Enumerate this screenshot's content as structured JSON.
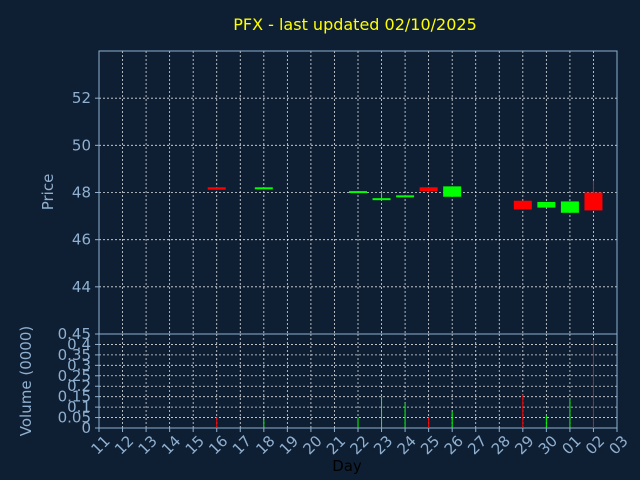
{
  "chart_data": {
    "type": "candlestick",
    "title": "PFX - last updated 02/10/2025",
    "ylabel": "Price",
    "volume_label": "Volume (0000)",
    "xlabel": "Day",
    "colors": {
      "up": "#00ff00",
      "down": "#ff0000",
      "grid": "#ffffff",
      "axis": "#8fb0d0",
      "title": "#ffff00"
    },
    "x_ticks": [
      "11",
      "12",
      "13",
      "14",
      "15",
      "16",
      "17",
      "18",
      "19",
      "20",
      "21",
      "22",
      "23",
      "24",
      "25",
      "26",
      "27",
      "28",
      "29",
      "30",
      "01",
      "02",
      "03"
    ],
    "price_ylim": [
      42.0,
      54.0
    ],
    "price_ticks": [
      "44",
      "46",
      "48",
      "50",
      "52"
    ],
    "volume_ylim": [
      0,
      0.45
    ],
    "volume_ticks": [
      "0",
      "0.05",
      "0.1",
      "0.15",
      "0.2",
      "0.25",
      "0.3",
      "0.35",
      "0.4",
      "0.45"
    ],
    "candles": [
      {
        "day": "16",
        "open": 48.22,
        "close": 48.12,
        "high": 48.22,
        "low": 48.12,
        "volume": 0.05
      },
      {
        "day": "18",
        "open": 48.15,
        "close": 48.22,
        "high": 48.22,
        "low": 48.15,
        "volume": 0.04
      },
      {
        "day": "22",
        "open": 48.0,
        "close": 48.06,
        "high": 48.06,
        "low": 48.0,
        "volume": 0.05
      },
      {
        "day": "23",
        "open": 47.68,
        "close": 47.76,
        "high": 48.05,
        "low": 47.68,
        "volume": 0.15
      },
      {
        "day": "24",
        "open": 47.8,
        "close": 47.88,
        "high": 47.88,
        "low": 47.8,
        "volume": 0.12
      },
      {
        "day": "25",
        "open": 48.22,
        "close": 48.06,
        "high": 48.22,
        "low": 48.0,
        "volume": 0.05
      },
      {
        "day": "26",
        "open": 47.82,
        "close": 48.26,
        "high": 48.26,
        "low": 47.82,
        "volume": 0.08
      },
      {
        "day": "29",
        "open": 47.65,
        "close": 47.28,
        "high": 47.65,
        "low": 47.28,
        "volume": 0.16
      },
      {
        "day": "30",
        "open": 47.36,
        "close": 47.6,
        "high": 47.6,
        "low": 47.36,
        "volume": 0.06
      },
      {
        "day": "01",
        "open": 47.14,
        "close": 47.62,
        "high": 47.62,
        "low": 47.14,
        "volume": 0.14
      },
      {
        "day": "02",
        "open": 48.0,
        "close": 47.24,
        "high": 48.5,
        "low": 47.24,
        "volume": 0.42
      }
    ]
  }
}
